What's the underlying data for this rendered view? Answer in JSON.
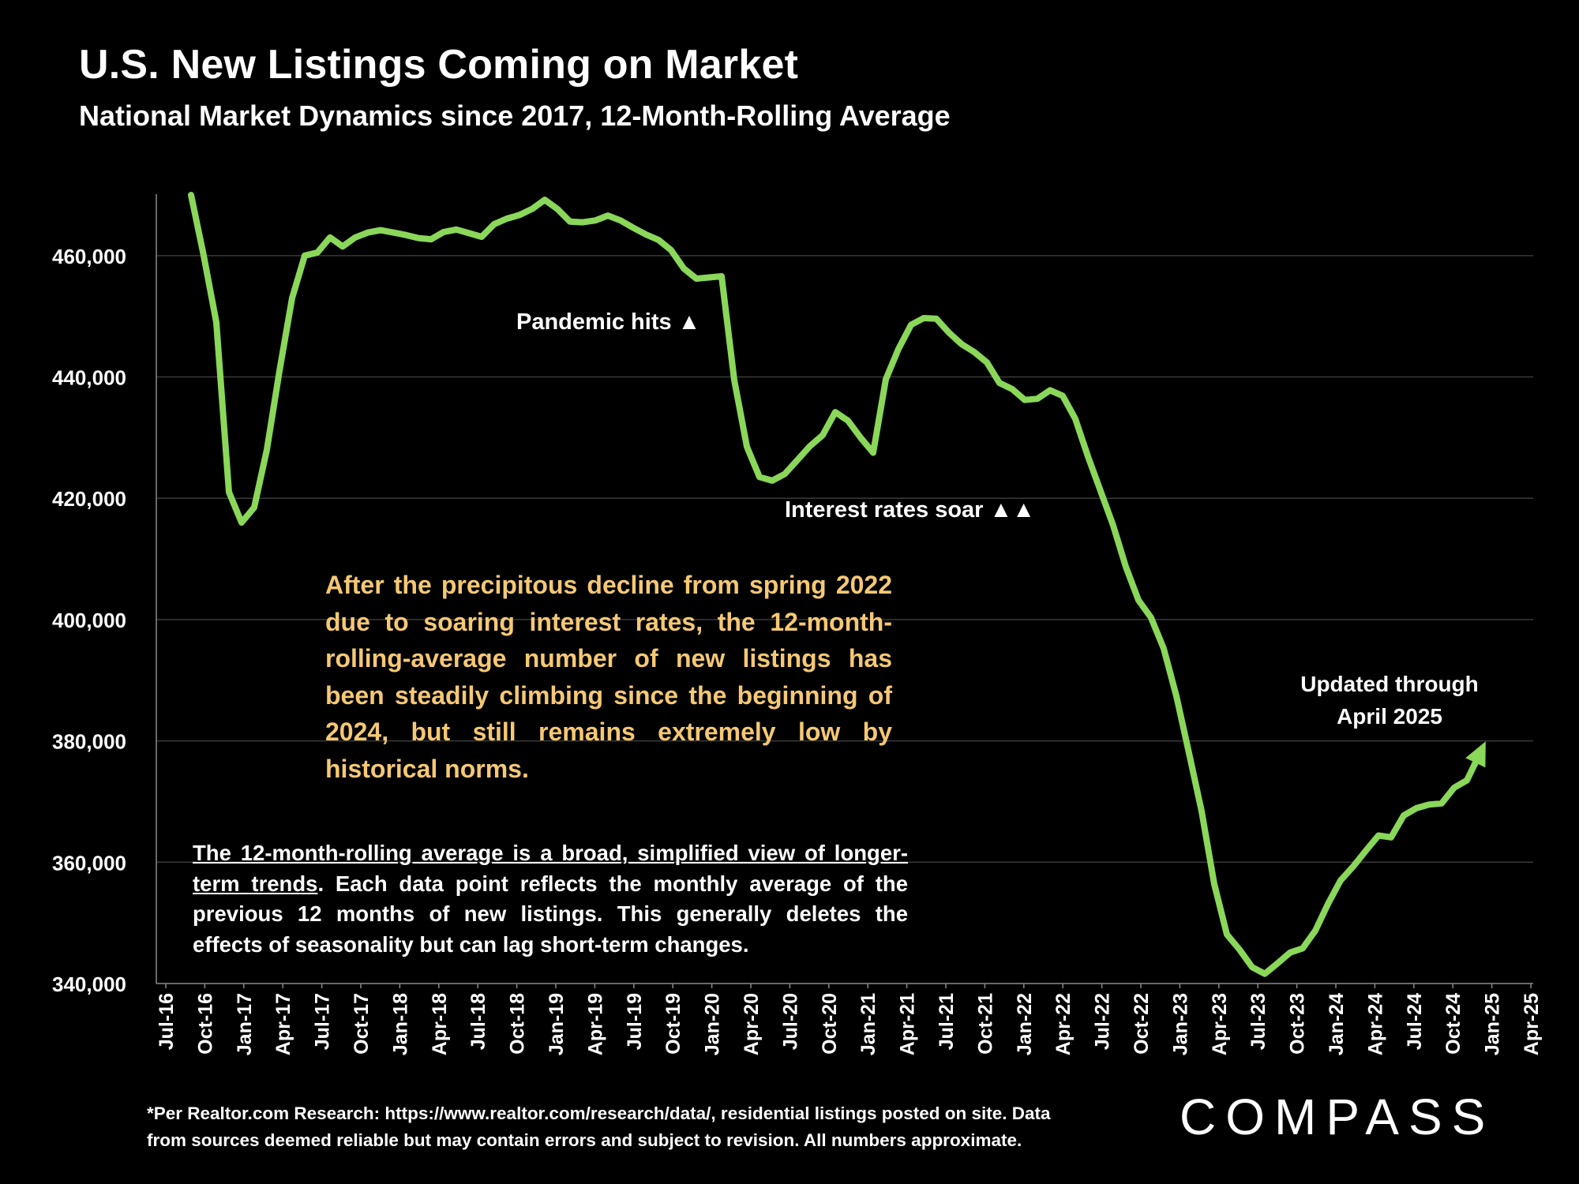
{
  "title": "U.S. New Listings Coming on Market",
  "subtitle": "National Market Dynamics since 2017, 12-Month-Rolling Average",
  "annotations": {
    "pandemic": "Pandemic hits ▲",
    "interest": "Interest rates soar ▲▲",
    "updated_line1": "Updated through",
    "updated_line2": "April 2025"
  },
  "note_yellow": "After the precipitous decline from spring 2022 due to soaring interest rates, the 12-month-rolling-average number of new listings has been steadily climbing since the beginning of 2024, but still remains extremely low by historical norms.",
  "note_white_underlined": "The 12-month-rolling average is a broad, simplified view of longer-term trends",
  "note_white_rest": ". Each data point reflects the monthly average of the previous 12 months of new listings. This generally deletes the effects of seasonality but can lag short-term changes.",
  "footnote_line1": "*Per Realtor.com Research:  https://www.realtor.com/research/data/, residential listings posted on site. Data",
  "footnote_line2": "from sources deemed reliable but may contain errors and subject to revision. All numbers approximate.",
  "logo": "COMPASS",
  "colors": {
    "line": "#8ad75a",
    "note": "#f5c874",
    "grid": "#3a3a3a",
    "background": "#000000"
  },
  "chart_data": {
    "type": "line",
    "title": "U.S. New Listings Coming on Market",
    "xlabel": "",
    "ylabel": "",
    "ylim": [
      340000,
      470000
    ],
    "yticks": [
      340000,
      360000,
      380000,
      400000,
      420000,
      440000,
      460000
    ],
    "ytick_labels": [
      "340,000",
      "360,000",
      "380,000",
      "400,000",
      "420,000",
      "440,000",
      "460,000"
    ],
    "xtick_labels": [
      "Jul-16",
      "Oct-16",
      "Jan-17",
      "Apr-17",
      "Jul-17",
      "Oct-17",
      "Jan-18",
      "Apr-18",
      "Jul-18",
      "Oct-18",
      "Jan-19",
      "Apr-19",
      "Jul-19",
      "Oct-19",
      "Jan-20",
      "Apr-20",
      "Jul-20",
      "Oct-20",
      "Jan-21",
      "Apr-21",
      "Jul-21",
      "Oct-21",
      "Jan-22",
      "Apr-22",
      "Jul-22",
      "Oct-22",
      "Jan-23",
      "Apr-23",
      "Jul-23",
      "Oct-23",
      "Jan-24",
      "Apr-24",
      "Jul-24",
      "Oct-24",
      "Jan-25",
      "Apr-25"
    ],
    "x_start_index": 2,
    "series": [
      {
        "name": "New listings (12-month rolling average)",
        "start": "Sep-16",
        "values": [
          470000,
          460000,
          449000,
          421000,
          416000,
          418500,
          428000,
          441000,
          453000,
          460000,
          460500,
          463000,
          461500,
          463000,
          463800,
          464200,
          463800,
          463400,
          462900,
          462700,
          463900,
          464300,
          463700,
          463100,
          465200,
          466100,
          466700,
          467700,
          469200,
          467700,
          465600,
          465500,
          465800,
          466600,
          465800,
          464600,
          463500,
          462600,
          460900,
          457900,
          456200,
          456400,
          456600,
          439500,
          428500,
          423500,
          422900,
          424000,
          426300,
          428600,
          430400,
          434200,
          432800,
          430000,
          427500,
          439600,
          444600,
          448600,
          449700,
          449600,
          447300,
          445400,
          444100,
          442400,
          439000,
          438000,
          436200,
          436400,
          437800,
          436900,
          433100,
          426900,
          421200,
          415500,
          408700,
          403200,
          400300,
          395200,
          387400,
          378000,
          368400,
          356400,
          348100,
          345600,
          342700,
          341600,
          343300,
          345100,
          345800,
          348700,
          353100,
          357000,
          359300,
          361900,
          364400,
          364100,
          367700,
          368900,
          369500,
          369700,
          372300,
          373500,
          377800
        ]
      }
    ]
  }
}
